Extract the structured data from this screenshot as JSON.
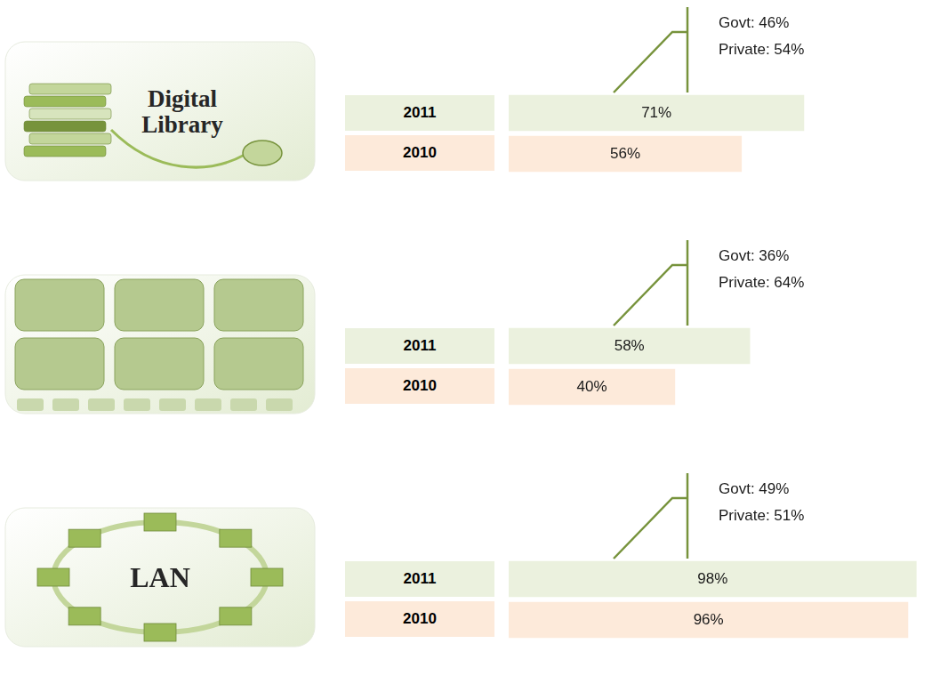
{
  "chart_data": [
    {
      "type": "bar",
      "orientation": "horizontal",
      "title": "Digital Library",
      "categories": [
        "2011",
        "2010"
      ],
      "values": [
        71,
        56
      ],
      "value_labels": [
        "71%",
        "56%"
      ],
      "data_labels": true,
      "colors": [
        "#ebf1de",
        "#fdeada"
      ],
      "xlim": [
        0,
        100
      ],
      "tick_labels": "y",
      "grid": false,
      "annotations": [
        "Govt: 46%",
        "Private: 54%"
      ]
    },
    {
      "type": "bar",
      "orientation": "horizontal",
      "categories": [
        "2011",
        "2010"
      ],
      "values": [
        58,
        40
      ],
      "value_labels": [
        "58%",
        "40%"
      ],
      "data_labels": true,
      "colors": [
        "#ebf1de",
        "#fdeada"
      ],
      "xlim": [
        0,
        100
      ],
      "tick_labels": "y",
      "grid": false,
      "annotations": [
        "Govt: 36%",
        "Private: 64%"
      ]
    },
    {
      "type": "bar",
      "orientation": "horizontal",
      "title": "LAN",
      "categories": [
        "2011",
        "2010"
      ],
      "values": [
        98,
        96
      ],
      "value_labels": [
        "98%",
        "96%"
      ],
      "data_labels": true,
      "colors": [
        "#ebf1de",
        "#fdeada"
      ],
      "xlim": [
        0,
        100
      ],
      "tick_labels": "y",
      "grid": false,
      "annotations": [
        "Govt: 49%",
        "Private: 51%"
      ]
    }
  ]
}
